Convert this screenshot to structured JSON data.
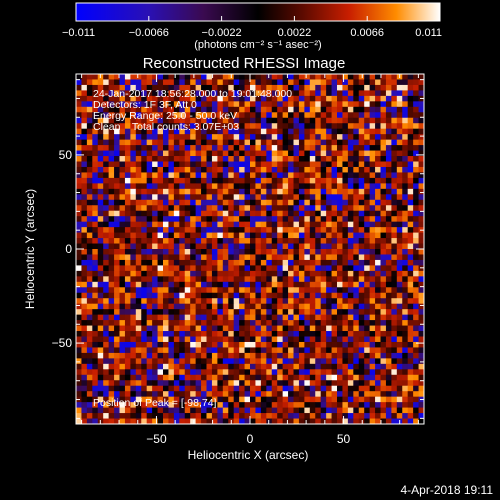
{
  "colorbar": {
    "tick_labels": [
      "-0.011",
      "-0.0066",
      "-0.0022",
      "0.0022",
      "0.0066",
      "0.011"
    ],
    "tick_values": [
      -0.011,
      -0.0066,
      -0.0022,
      0.0022,
      0.0066,
      0.011
    ],
    "range": [
      -0.011,
      0.011
    ],
    "units": "(photons cm⁻² s⁻¹ asec⁻²)",
    "colors": [
      "#0000ff",
      "#2a0a8c",
      "#3c0a4a",
      "#000000",
      "#5a0a00",
      "#c81e00",
      "#ff8c00",
      "#ffffff"
    ]
  },
  "footer": {
    "date": "4-Apr-2018 19:11"
  },
  "chart_data": {
    "type": "heatmap",
    "title": "Reconstructed RHESSI Image",
    "xlabel": "Heliocentric X (arcsec)",
    "ylabel": "Heliocentric Y (arcsec)",
    "xlim": [
      -93,
      93
    ],
    "ylim": [
      -93,
      93
    ],
    "xticks": [
      -50,
      0,
      50
    ],
    "yticks": [
      -50,
      0,
      50
    ],
    "xtick_labels": [
      "−50",
      "0",
      "50"
    ],
    "ytick_labels": [
      "−50",
      "0",
      "50"
    ],
    "info_lines": [
      "24-Jan-2017 18:56:28.000 to 19:01:48.000",
      "Detectors: 1F 3F, Att 0",
      "Energy Range: 25.0 - 50.0 keV",
      "Clean    Total counts: 3.07E+03"
    ],
    "peak_label": "Position of Peak = [-98,74]",
    "grid": {
      "nx": 64,
      "ny": 64,
      "pixel_arcsec": 2.9,
      "pattern": "uniform random noise, values within colorbar range"
    }
  }
}
